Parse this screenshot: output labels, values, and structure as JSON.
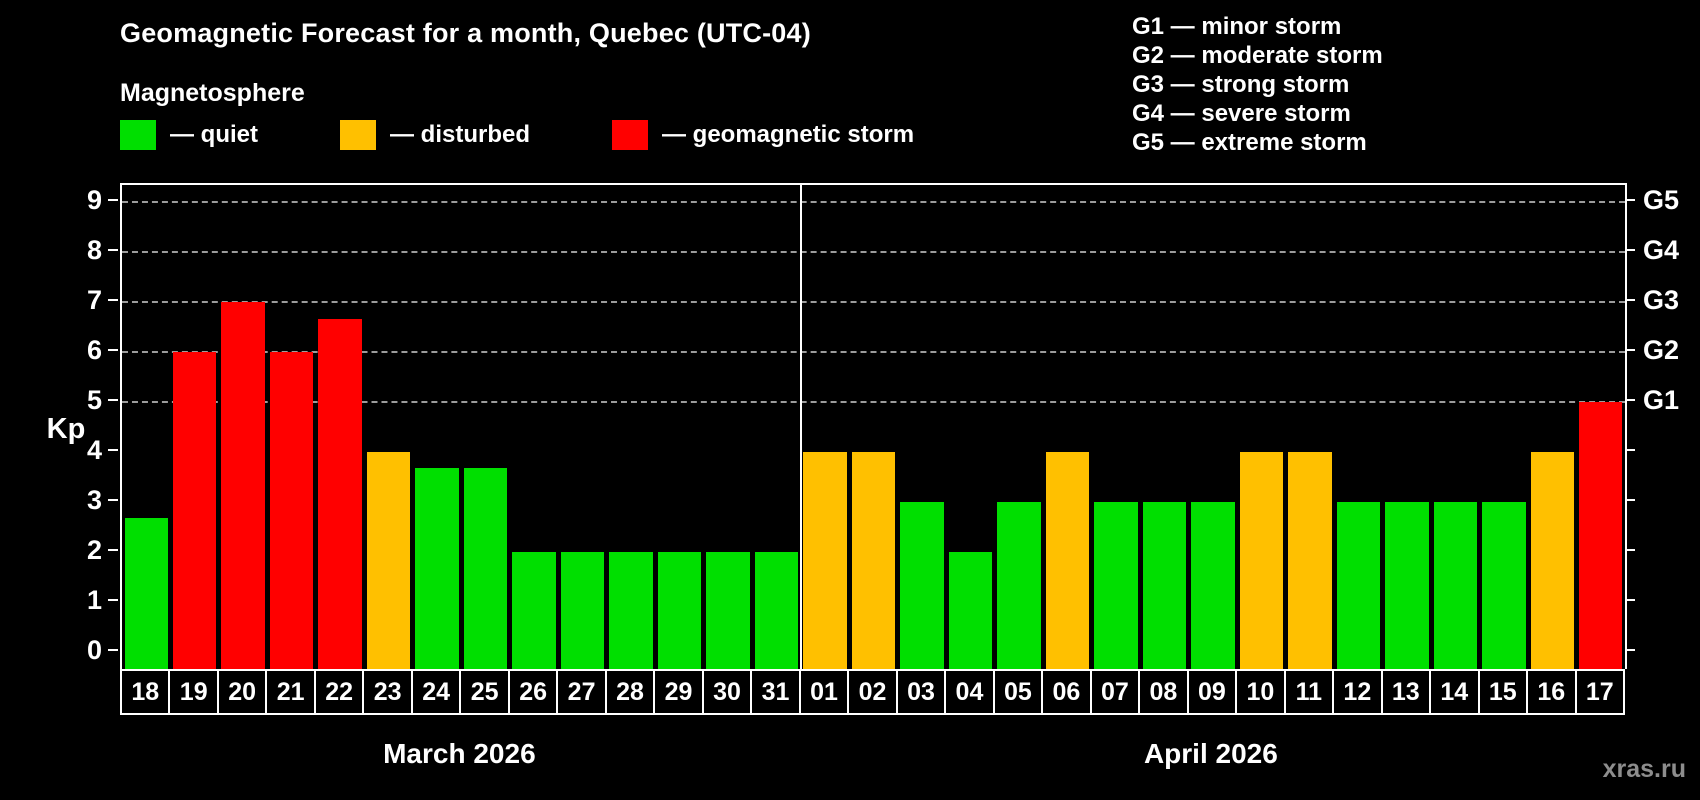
{
  "header": {
    "title": "Geomagnetic Forecast for a month, Quebec (UTC-04)",
    "subtitle": "Magnetosphere"
  },
  "legend": {
    "items": [
      {
        "key": "quiet",
        "label": "— quiet",
        "color": "#00df00"
      },
      {
        "key": "disturbed",
        "label": "— disturbed",
        "color": "#ffc000"
      },
      {
        "key": "storm",
        "label": "— geomagnetic storm",
        "color": "#ff0000"
      }
    ]
  },
  "storm_scale": [
    "G1 — minor storm",
    "G2 — moderate storm",
    "G3 — strong storm",
    "G4 — severe storm",
    "G5 — extreme storm"
  ],
  "axes": {
    "y_label": "Kp",
    "y_ticks": [
      0,
      1,
      2,
      3,
      4,
      5,
      6,
      7,
      8,
      9
    ]
  },
  "chart_data": {
    "type": "bar",
    "title": "Geomagnetic Forecast for a month, Quebec (UTC-04)",
    "ylabel": "Kp",
    "ylim": [
      0,
      9
    ],
    "ylim_display": [
      -0.35,
      9.35
    ],
    "grid": "dashed horizontal lines at geomagnetic storm levels only",
    "grid_levels": [
      {
        "kp": 5,
        "label": "G1"
      },
      {
        "kp": 6,
        "label": "G2"
      },
      {
        "kp": 7,
        "label": "G3"
      },
      {
        "kp": 8,
        "label": "G4"
      },
      {
        "kp": 9,
        "label": "G5"
      }
    ],
    "legend_position": "top-left",
    "status_colors": {
      "quiet": "#00df00",
      "disturbed": "#ffc000",
      "storm": "#ff0000"
    },
    "months": [
      {
        "label": "March 2026",
        "days": [
          "18",
          "19",
          "20",
          "21",
          "22",
          "23",
          "24",
          "25",
          "26",
          "27",
          "28",
          "29",
          "30",
          "31"
        ],
        "values": [
          2.67,
          6,
          7,
          6,
          6.67,
          4,
          3.67,
          3.67,
          2,
          2,
          2,
          2,
          2,
          2
        ],
        "statuses": [
          "quiet",
          "storm",
          "storm",
          "storm",
          "storm",
          "disturbed",
          "quiet",
          "quiet",
          "quiet",
          "quiet",
          "quiet",
          "quiet",
          "quiet",
          "quiet"
        ]
      },
      {
        "label": "April 2026",
        "days": [
          "01",
          "02",
          "03",
          "04",
          "05",
          "06",
          "07",
          "08",
          "09",
          "10",
          "11",
          "12",
          "13",
          "14",
          "15",
          "16",
          "17"
        ],
        "values": [
          4,
          4,
          3,
          2,
          3,
          4,
          3,
          3,
          3,
          4,
          4,
          3,
          3,
          3,
          3,
          4,
          5
        ],
        "statuses": [
          "disturbed",
          "disturbed",
          "quiet",
          "quiet",
          "quiet",
          "disturbed",
          "quiet",
          "quiet",
          "quiet",
          "disturbed",
          "disturbed",
          "quiet",
          "quiet",
          "quiet",
          "quiet",
          "disturbed",
          "storm"
        ]
      }
    ]
  },
  "watermark": "xras.ru"
}
